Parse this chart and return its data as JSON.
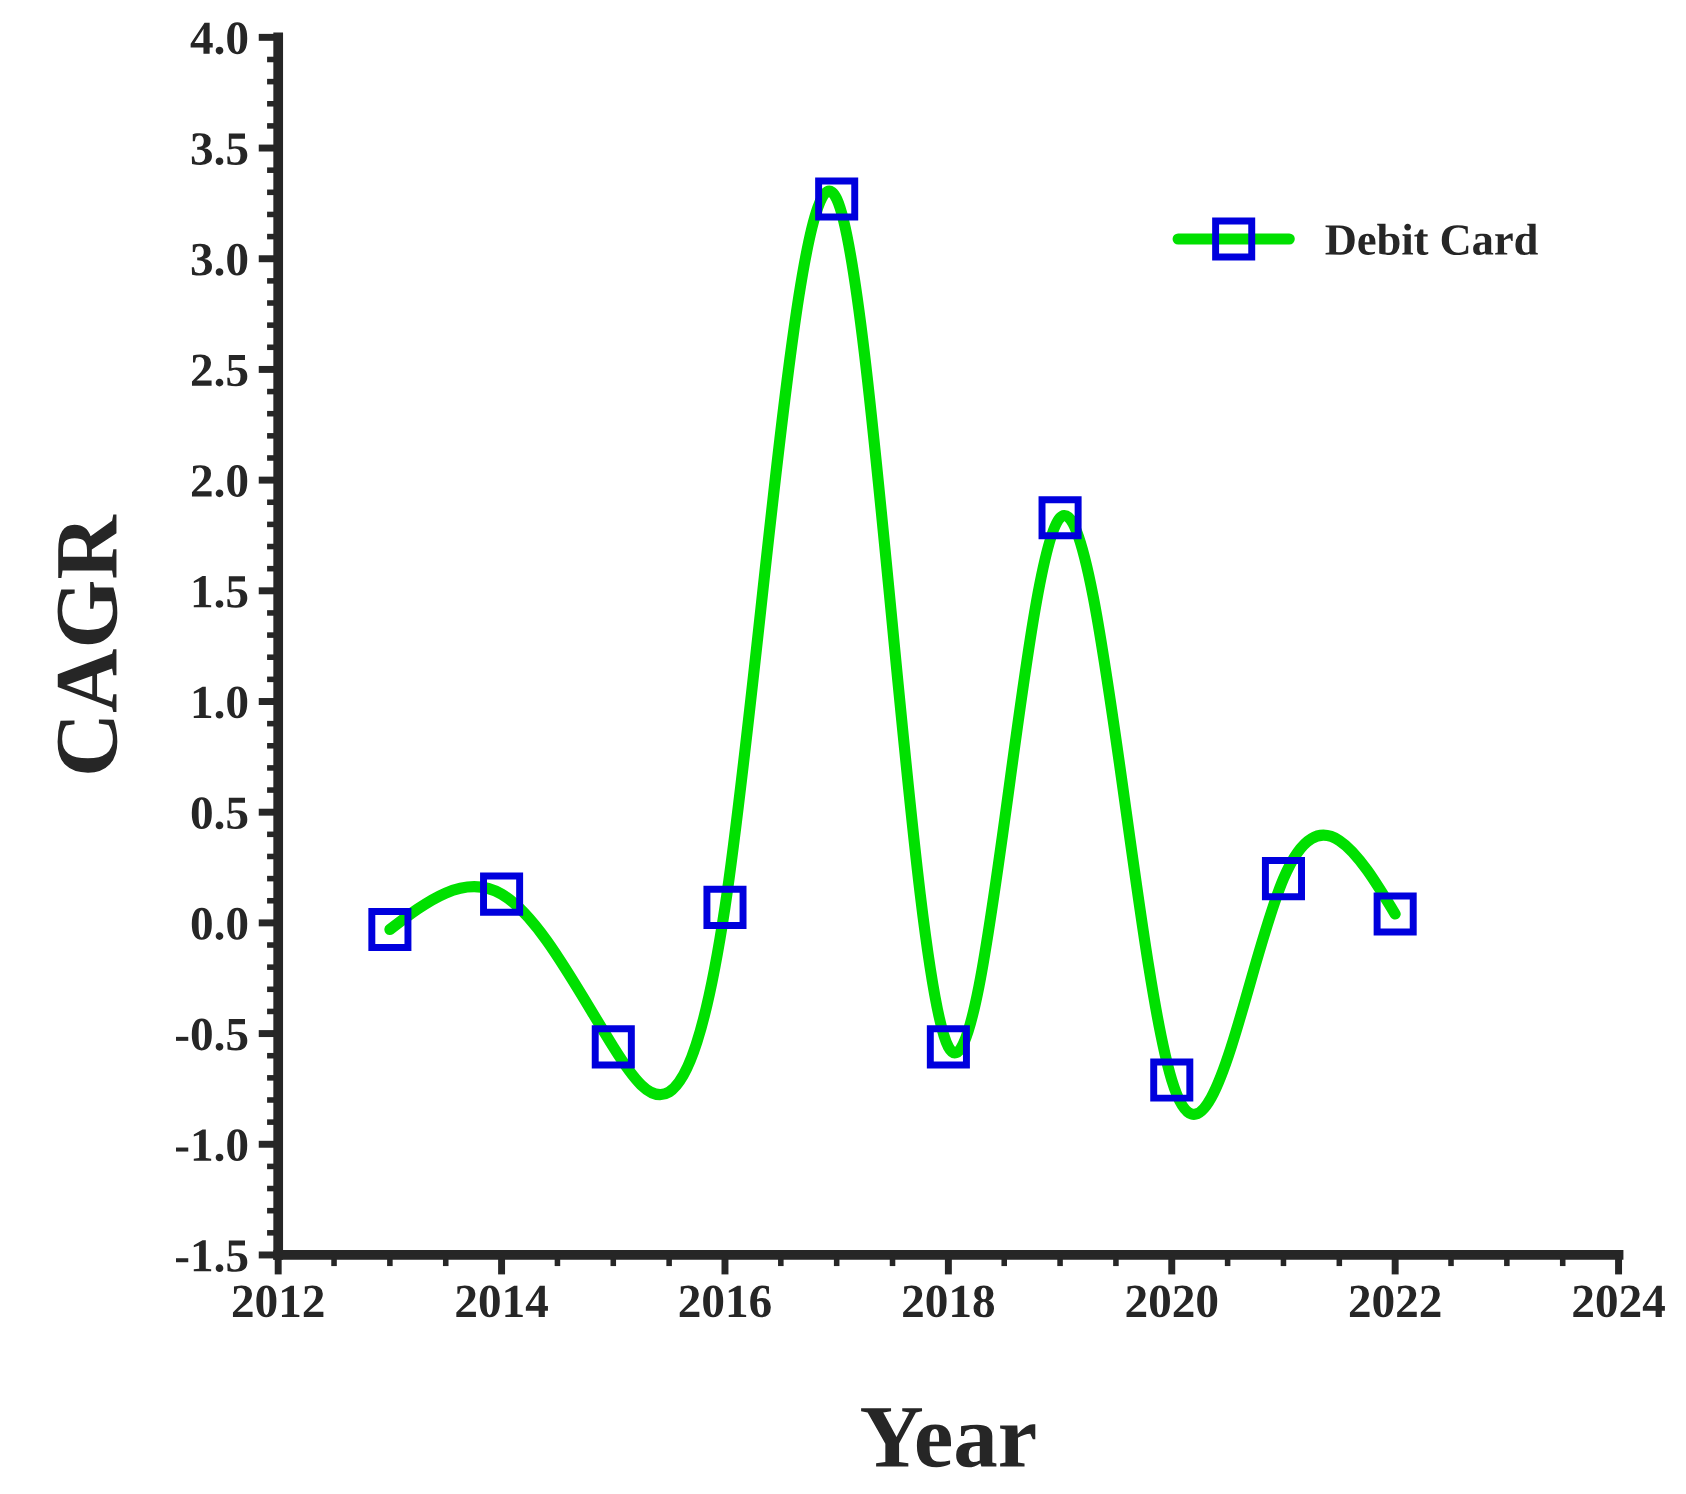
{
  "chart_data": {
    "type": "line",
    "xlabel": "Year",
    "ylabel": "CAGR",
    "x": [
      2013,
      2014,
      2015,
      2016,
      2017,
      2018,
      2019,
      2020,
      2021,
      2022
    ],
    "series": [
      {
        "name": "Debit Card",
        "color": "#00e000",
        "values": [
          -0.03,
          0.13,
          -0.56,
          0.07,
          3.27,
          -0.56,
          1.83,
          -0.71,
          0.2,
          0.04
        ]
      }
    ],
    "xlim": [
      2012,
      2024
    ],
    "xticks": [
      2012,
      2014,
      2016,
      2018,
      2020,
      2022,
      2024
    ],
    "ylim": [
      -1.5,
      4.0
    ],
    "yticks": [
      {
        "value": -1.5,
        "label": "-1.5"
      },
      {
        "value": -1.0,
        "label": "-1.0"
      },
      {
        "value": -0.5,
        "label": "-0.5"
      },
      {
        "value": 0.0,
        "label": "0.0"
      },
      {
        "value": 0.5,
        "label": "0.5"
      },
      {
        "value": 1.0,
        "label": "1.0"
      },
      {
        "value": 1.5,
        "label": "1.5"
      },
      {
        "value": 2.0,
        "label": "2.0"
      },
      {
        "value": 2.5,
        "label": "2.5"
      },
      {
        "value": 3.0,
        "label": "3.0"
      },
      {
        "value": 3.5,
        "label": "3.5"
      },
      {
        "value": 4.0,
        "label": "4.0"
      }
    ],
    "marker": "square",
    "legend": "top right",
    "grid": false
  }
}
